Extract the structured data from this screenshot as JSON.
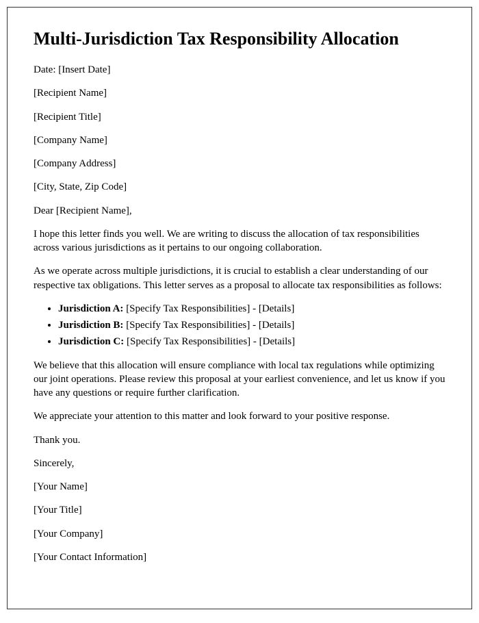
{
  "title": "Multi-Jurisdiction Tax Responsibility Allocation",
  "date_line": "Date: [Insert Date]",
  "recipient": {
    "name": "[Recipient Name]",
    "title": "[Recipient Title]",
    "company": "[Company Name]",
    "address": "[Company Address]",
    "city_state_zip": "[City, State, Zip Code]"
  },
  "salutation": "Dear [Recipient Name],",
  "body": {
    "p1": "I hope this letter finds you well. We are writing to discuss the allocation of tax responsibilities across various jurisdictions as it pertains to our ongoing collaboration.",
    "p2": "As we operate across multiple jurisdictions, it is crucial to establish a clear understanding of our respective tax obligations. This letter serves as a proposal to allocate tax responsibilities as follows:",
    "p3": "We believe that this allocation will ensure compliance with local tax regulations while optimizing our joint operations. Please review this proposal at your earliest convenience, and let us know if you have any questions or require further clarification.",
    "p4": "We appreciate your attention to this matter and look forward to your positive response.",
    "thank": "Thank you."
  },
  "jurisdictions": [
    {
      "label": "Jurisdiction A:",
      "rest": " [Specify Tax Responsibilities] - [Details]"
    },
    {
      "label": "Jurisdiction B:",
      "rest": " [Specify Tax Responsibilities] - [Details]"
    },
    {
      "label": "Jurisdiction C:",
      "rest": " [Specify Tax Responsibilities] - [Details]"
    }
  ],
  "closing": {
    "sincerely": "Sincerely,",
    "name": "[Your Name]",
    "title": "[Your Title]",
    "company": "[Your Company]",
    "contact": "[Your Contact Information]"
  },
  "style": {
    "heading_fontsize": 26,
    "body_fontsize": 15,
    "text_color": "#000000",
    "border_color": "#333333",
    "background_color": "#ffffff"
  }
}
